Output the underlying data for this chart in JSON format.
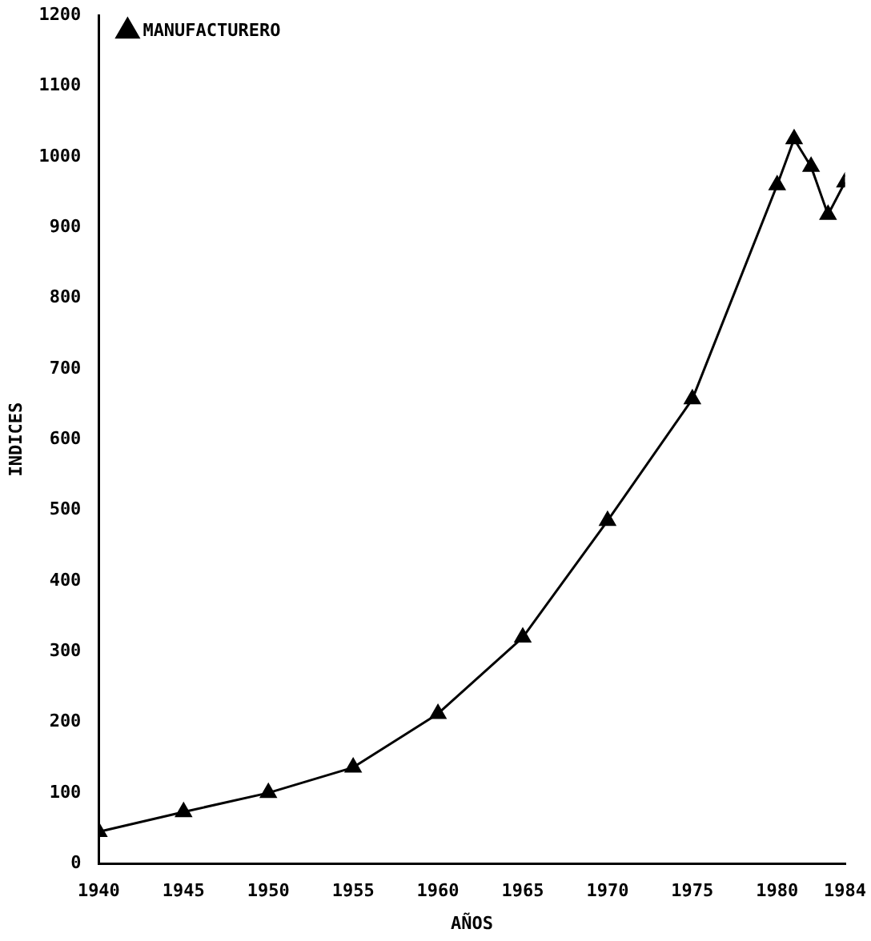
{
  "chart_data": {
    "type": "line",
    "xlabel": "AÑOS",
    "ylabel": "INDICES",
    "x": [
      1940,
      1945,
      1950,
      1955,
      1960,
      1965,
      1970,
      1975,
      1980,
      1981,
      1982,
      1983,
      1984
    ],
    "series": [
      {
        "name": "MANUFACTURERO",
        "color": "#000000",
        "values": [
          45,
          73,
          100,
          136,
          212,
          320,
          485,
          657,
          960,
          1025,
          986,
          918,
          964
        ]
      }
    ],
    "xlim": [
      1940,
      1984
    ],
    "xticks": [
      1940,
      1945,
      1950,
      1955,
      1960,
      1965,
      1970,
      1975,
      1980,
      1984
    ],
    "ylim": [
      0,
      1200
    ],
    "yticks": [
      0,
      100,
      200,
      300,
      400,
      500,
      600,
      700,
      800,
      900,
      1000,
      1100,
      1200
    ],
    "grid": false,
    "legend": "top left",
    "marker": "triangle",
    "line_style": "solid"
  }
}
